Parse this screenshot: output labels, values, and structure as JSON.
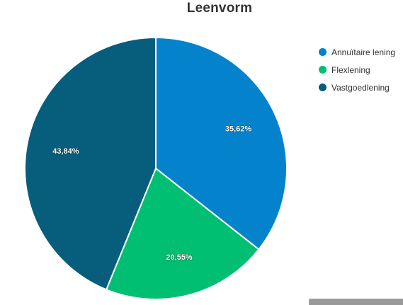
{
  "chart_data": {
    "type": "pie",
    "title": "Leenvorm",
    "slices": [
      {
        "name": "Annuïtaire lening",
        "value": 35.62,
        "label": "35,62%",
        "color": "#0483cc"
      },
      {
        "name": "Flexlening",
        "value": 20.55,
        "label": "20,55%",
        "color": "#00bf72"
      },
      {
        "name": "Vastgoedlening",
        "value": 43.84,
        "label": "43,84%",
        "color": "#075d7c"
      }
    ],
    "legend_position": "top-right",
    "start_angle": "12 o'clock, clockwise"
  }
}
